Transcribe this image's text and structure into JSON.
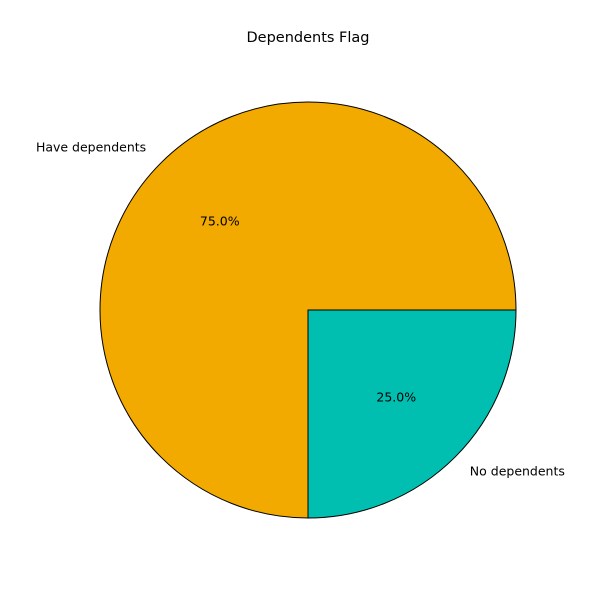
{
  "chart_data": {
    "type": "pie",
    "title": "Dependents Flag",
    "slices": [
      {
        "label": "Have dependents",
        "value": 75.0,
        "pct_label": "75.0%",
        "color": "#F2A900"
      },
      {
        "label": "No dependents",
        "value": 25.0,
        "pct_label": "25.0%",
        "color": "#00BFB0"
      }
    ],
    "start_angle_deg": 0,
    "direction": "counterclockwise",
    "edge_color": "#000000"
  }
}
